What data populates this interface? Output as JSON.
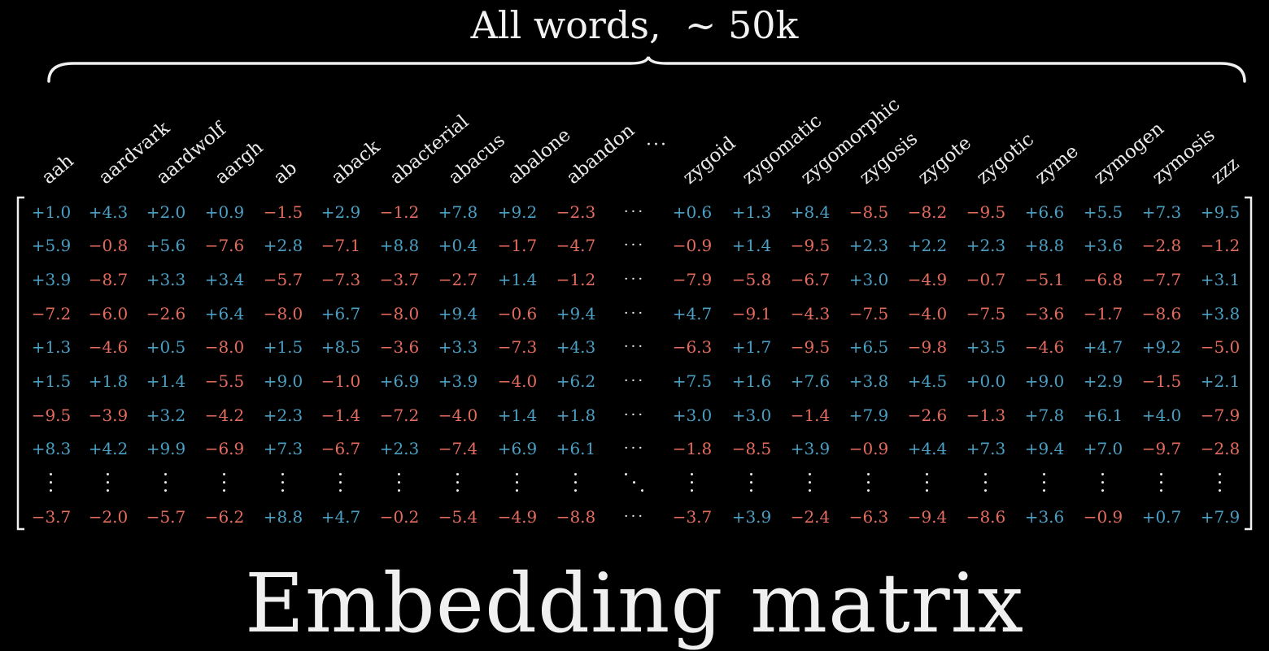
{
  "header": {
    "title": "All words,  ∼ 50k"
  },
  "footer": {
    "title": "Embedding matrix"
  },
  "colors": {
    "positive": "#4a9fc4",
    "negative": "#e46b5e",
    "neutral": "#eaeaea",
    "background": "#000000"
  },
  "icons": {
    "brace": "curly-brace-icon",
    "col_ellipsis": "horizontal-ellipsis-icon",
    "row_ellipsis": "vertical-ellipsis-icon",
    "diag_ellipsis": "diagonal-ellipsis-icon"
  },
  "matrix": {
    "left_words": [
      "aah",
      "aardvark",
      "aardwolf",
      "aargh",
      "ab",
      "aback",
      "abacterial",
      "abacus",
      "abalone",
      "abandon"
    ],
    "ellipsis_word": "···",
    "right_words": [
      "zygoid",
      "zygomatic",
      "zygomorphic",
      "zygosis",
      "zygote",
      "zygotic",
      "zyme",
      "zymogen",
      "zymosis",
      "zzz"
    ],
    "rows_left": [
      [
        "+1.0",
        "+4.3",
        "+2.0",
        "+0.9",
        "−1.5",
        "+2.9",
        "−1.2",
        "+7.8",
        "+9.2",
        "−2.3"
      ],
      [
        "+5.9",
        "−0.8",
        "+5.6",
        "−7.6",
        "+2.8",
        "−7.1",
        "+8.8",
        "+0.4",
        "−1.7",
        "−4.7"
      ],
      [
        "+3.9",
        "−8.7",
        "+3.3",
        "+3.4",
        "−5.7",
        "−7.3",
        "−3.7",
        "−2.7",
        "+1.4",
        "−1.2"
      ],
      [
        "−7.2",
        "−6.0",
        "−2.6",
        "+6.4",
        "−8.0",
        "+6.7",
        "−8.0",
        "+9.4",
        "−0.6",
        "+9.4"
      ],
      [
        "+1.3",
        "−4.6",
        "+0.5",
        "−8.0",
        "+1.5",
        "+8.5",
        "−3.6",
        "+3.3",
        "−7.3",
        "+4.3"
      ],
      [
        "+1.5",
        "+1.8",
        "+1.4",
        "−5.5",
        "+9.0",
        "−1.0",
        "+6.9",
        "+3.9",
        "−4.0",
        "+6.2"
      ],
      [
        "−9.5",
        "−3.9",
        "+3.2",
        "−4.2",
        "+2.3",
        "−1.4",
        "−7.2",
        "−4.0",
        "+1.4",
        "+1.8"
      ],
      [
        "+8.3",
        "+4.2",
        "+9.9",
        "−6.9",
        "+7.3",
        "−6.7",
        "+2.3",
        "−7.4",
        "+6.9",
        "+6.1"
      ]
    ],
    "rows_right": [
      [
        "+0.6",
        "+1.3",
        "+8.4",
        "−8.5",
        "−8.2",
        "−9.5",
        "+6.6",
        "+5.5",
        "+7.3",
        "+9.5"
      ],
      [
        "−0.9",
        "+1.4",
        "−9.5",
        "+2.3",
        "+2.2",
        "+2.3",
        "+8.8",
        "+3.6",
        "−2.8",
        "−1.2"
      ],
      [
        "−7.9",
        "−5.8",
        "−6.7",
        "+3.0",
        "−4.9",
        "−0.7",
        "−5.1",
        "−6.8",
        "−7.7",
        "+3.1"
      ],
      [
        "+4.7",
        "−9.1",
        "−4.3",
        "−7.5",
        "−4.0",
        "−7.5",
        "−3.6",
        "−1.7",
        "−8.6",
        "+3.8"
      ],
      [
        "−6.3",
        "+1.7",
        "−9.5",
        "+6.5",
        "−9.8",
        "+3.5",
        "−4.6",
        "+4.7",
        "+9.2",
        "−5.0"
      ],
      [
        "+7.5",
        "+1.6",
        "+7.6",
        "+3.8",
        "+4.5",
        "+0.0",
        "+9.0",
        "+2.9",
        "−1.5",
        "+2.1"
      ],
      [
        "+3.0",
        "+3.0",
        "−1.4",
        "+7.9",
        "−2.6",
        "−1.3",
        "+7.8",
        "+6.1",
        "+4.0",
        "−7.9"
      ],
      [
        "−1.8",
        "−8.5",
        "+3.9",
        "−0.9",
        "+4.4",
        "+7.3",
        "+9.4",
        "+7.0",
        "−9.7",
        "−2.8"
      ]
    ],
    "last_row_left": [
      "−3.7",
      "−2.0",
      "−5.7",
      "−6.2",
      "+8.8",
      "+4.7",
      "−0.2",
      "−5.4",
      "−4.9",
      "−8.8"
    ],
    "last_row_right": [
      "−3.7",
      "+3.9",
      "−2.4",
      "−6.3",
      "−9.4",
      "−8.6",
      "+3.6",
      "−0.9",
      "+0.7",
      "+7.9"
    ],
    "row_ellipsis_text": "···"
  }
}
